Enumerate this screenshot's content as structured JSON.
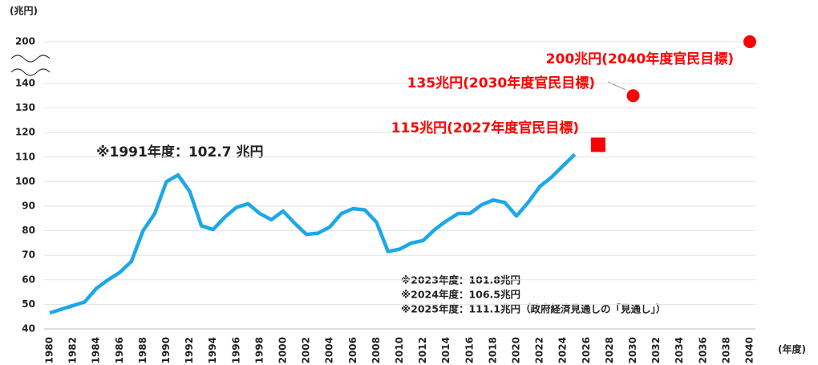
{
  "chart_data": {
    "type": "line",
    "y_unit": "(兆円)",
    "x_unit": "(年度)",
    "x": [
      1980,
      1981,
      1982,
      1983,
      1984,
      1985,
      1986,
      1987,
      1988,
      1989,
      1990,
      1991,
      1992,
      1993,
      1994,
      1995,
      1996,
      1997,
      1998,
      1999,
      2000,
      2001,
      2002,
      2003,
      2004,
      2005,
      2006,
      2007,
      2008,
      2009,
      2010,
      2011,
      2012,
      2013,
      2014,
      2015,
      2016,
      2017,
      2018,
      2019,
      2020,
      2021,
      2022,
      2023,
      2024,
      2025
    ],
    "series": [
      {
        "color": "#1ca8e8",
        "values": [
          46.5,
          48,
          49.5,
          51,
          56.5,
          60,
          63,
          67.5,
          80,
          87,
          100,
          102.7,
          96,
          82,
          80.5,
          85.5,
          89.5,
          91,
          87,
          84.5,
          88,
          83,
          78.5,
          79,
          81.5,
          87,
          89,
          88.5,
          83.5,
          71.5,
          72.5,
          75,
          76,
          80.5,
          84,
          87,
          87,
          90.5,
          92.5,
          91.5,
          86,
          91.5,
          98,
          101.8,
          106.5,
          111.1
        ]
      }
    ],
    "targets": [
      {
        "x": 2027,
        "value": 115,
        "label": "115兆円(2027年度官民目標)",
        "marker": "square",
        "color": "#ff0000"
      },
      {
        "x": 2030,
        "value": 135,
        "label": "135兆円(2030年度官民目標)",
        "marker": "circle",
        "color": "#ff0000"
      },
      {
        "x": 2040,
        "value": 200,
        "label": "200兆円(2040年度官民目標)",
        "marker": "circle",
        "color": "#ff0000"
      }
    ],
    "annotations": [
      "※1991年度：102.7 兆円"
    ],
    "notes": [
      "※2023年度：101.8兆円",
      "※2024年度：106.5兆円",
      "※2025年度：111.1兆円（政府経済見通しの「見通し」）"
    ],
    "xlim": [
      1980,
      2040
    ],
    "xticks": [
      1980,
      1982,
      1984,
      1986,
      1988,
      1990,
      1992,
      1994,
      1996,
      1998,
      2000,
      2002,
      2004,
      2006,
      2008,
      2010,
      2012,
      2014,
      2016,
      2018,
      2020,
      2022,
      2024,
      2026,
      2028,
      2030,
      2032,
      2034,
      2036,
      2038,
      2040
    ],
    "ylim": [
      40,
      200
    ],
    "yticks": [
      40,
      50,
      60,
      70,
      80,
      90,
      100,
      110,
      120,
      130,
      140,
      200
    ],
    "axis_break": [
      140,
      200
    ],
    "grid": true
  }
}
